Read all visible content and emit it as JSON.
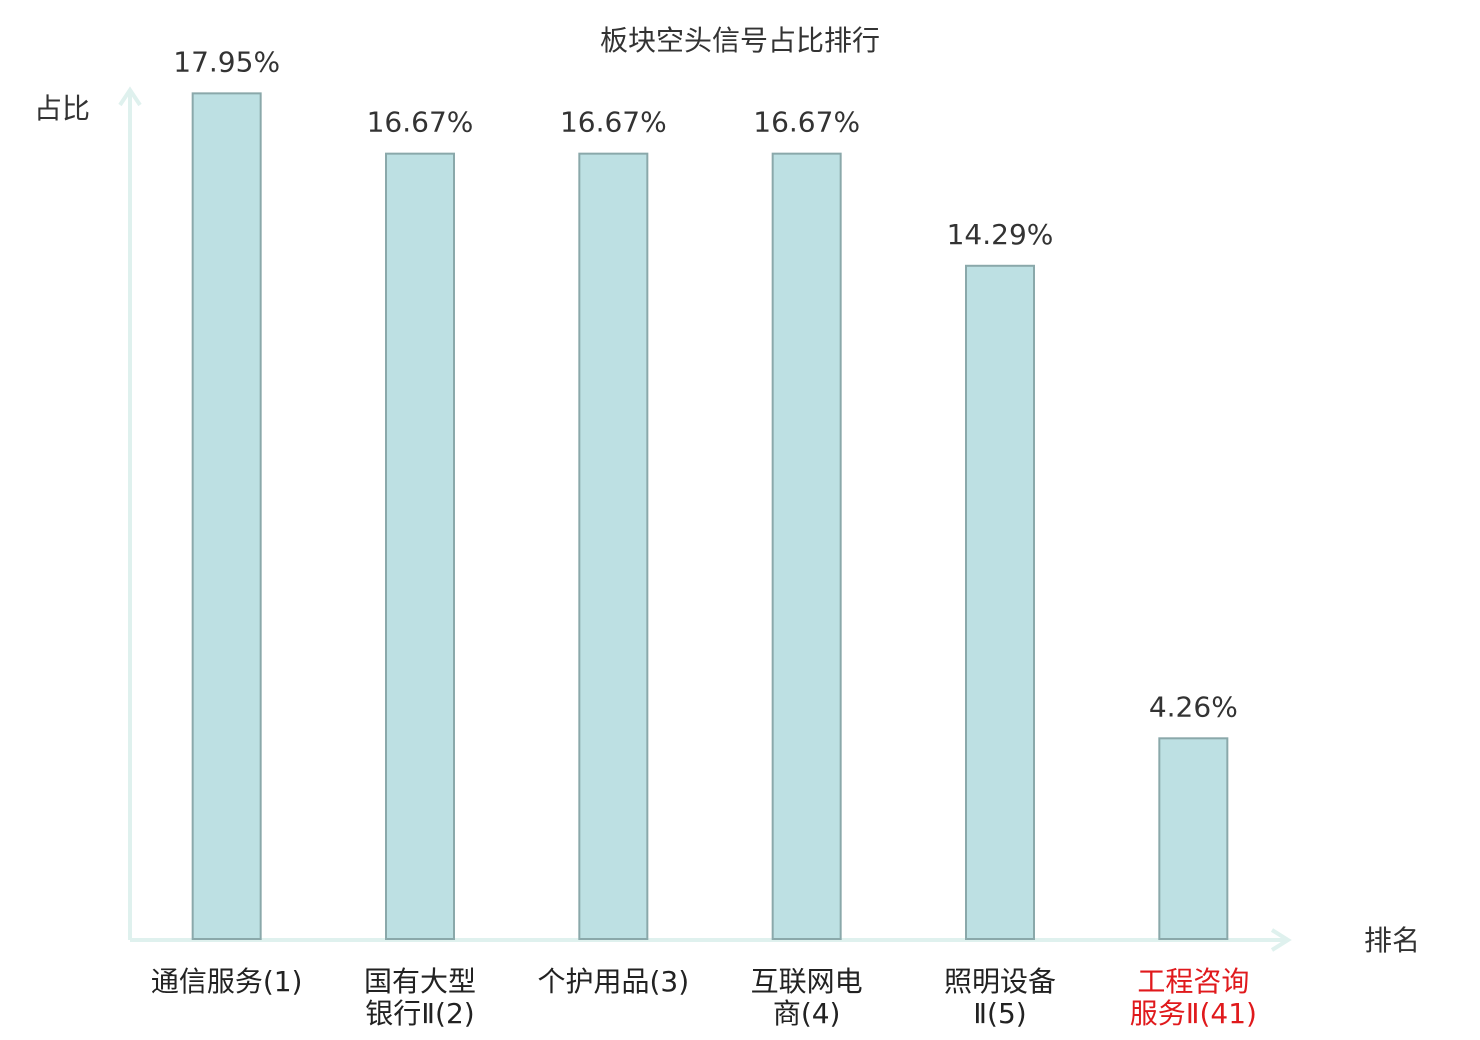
{
  "chart_data": {
    "type": "bar",
    "title": "板块空头信号占比排行",
    "y_label": "占比",
    "x_label": "排名",
    "categories": [
      "通信服务(1)",
      "国有大型\n银行Ⅱ(2)",
      "个护用品(3)",
      "互联网电\n商(4)",
      "照明设备\nⅡ(5)",
      "工程咨询\n服务Ⅱ(41)"
    ],
    "category_label_colors": [
      "#222222",
      "#222222",
      "#222222",
      "#222222",
      "#222222",
      "#e0191c"
    ],
    "values": [
      17.95,
      16.67,
      16.67,
      16.67,
      14.29,
      4.26
    ],
    "value_labels": [
      "17.95%",
      "16.67%",
      "16.67%",
      "16.67%",
      "14.29%",
      "4.26%"
    ],
    "color": "#bde0e3",
    "edge_color": "#8aa8aa",
    "ylim": [
      0,
      18
    ]
  }
}
